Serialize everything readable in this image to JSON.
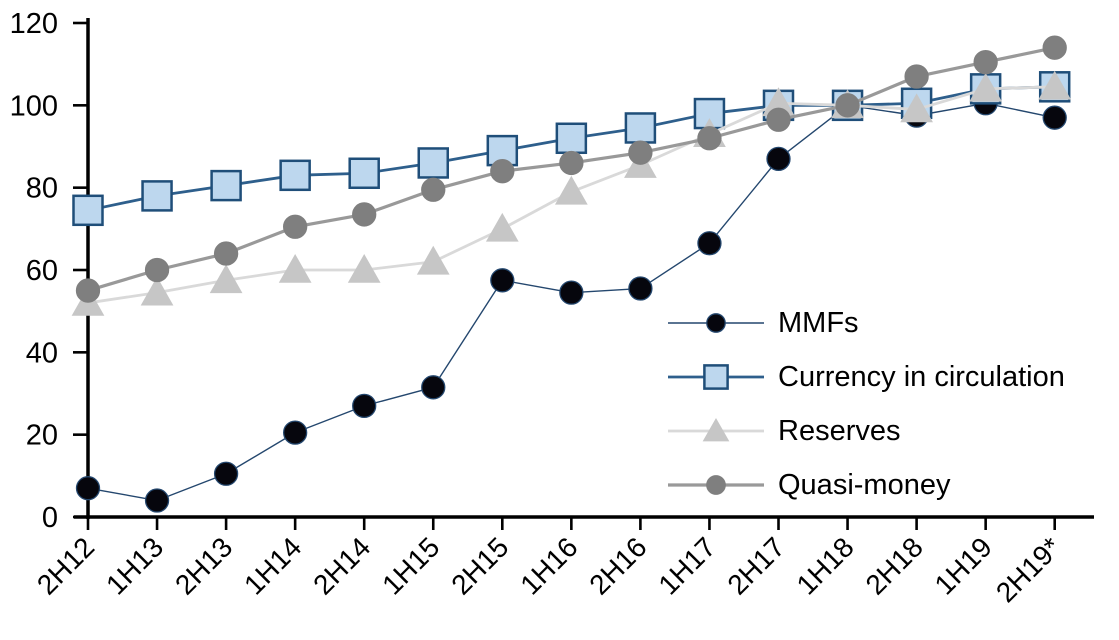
{
  "chart_data": {
    "type": "line",
    "title": "",
    "xlabel": "",
    "ylabel": "",
    "categories": [
      "2H12",
      "1H13",
      "2H13",
      "1H14",
      "2H14",
      "1H15",
      "2H15",
      "1H16",
      "2H16",
      "1H17",
      "2H17",
      "1H18",
      "2H18",
      "1H19",
      "2H19*"
    ],
    "series": [
      {
        "name": "MMFs",
        "marker": "circle",
        "marker_fill": "#06060d",
        "marker_stroke": "#24476e",
        "line_color": "#24476e",
        "line_width": 1.4,
        "marker_size": 11.5,
        "values": [
          7,
          4,
          10.5,
          20.5,
          27,
          31.5,
          57.5,
          54.5,
          55.5,
          66.5,
          87,
          100,
          97.5,
          100.5,
          97
        ]
      },
      {
        "name": "Currency in circulation",
        "marker": "square",
        "marker_fill": "#bdd7ee",
        "marker_stroke": "#1f4e79",
        "line_color": "#2e5f8c",
        "line_width": 2.8,
        "marker_size": 14.5,
        "values": [
          74.5,
          78,
          80.5,
          83,
          83.5,
          86,
          89,
          92,
          94.5,
          98,
          100,
          100,
          100.5,
          104,
          104.5
        ]
      },
      {
        "name": "Reserves",
        "marker": "triangle",
        "marker_fill": "#c6c6c6",
        "marker_stroke": "#c6c6c6",
        "line_color": "#d9d9d9",
        "line_width": 2.8,
        "marker_size": 15,
        "values": [
          52,
          54.5,
          57.5,
          60,
          60,
          62,
          70,
          79,
          85.5,
          93,
          100.5,
          100,
          99,
          104,
          104.5
        ]
      },
      {
        "name": "Quasi-money",
        "marker": "circle",
        "marker_fill": "#7f7f7f",
        "marker_stroke": "#7f7f7f",
        "line_color": "#999999",
        "line_width": 3.2,
        "marker_size": 11.5,
        "values": [
          55,
          60,
          64,
          70.5,
          73.5,
          79.5,
          84,
          86,
          88.5,
          92,
          96.5,
          100,
          107,
          110.5,
          114
        ]
      }
    ],
    "ylim": [
      0,
      120
    ],
    "yticks": [
      0,
      20,
      40,
      60,
      80,
      100,
      120
    ],
    "grid": false,
    "legend_position": "right-middle",
    "axis_color": "#000000",
    "tick_label_color": "#000000",
    "x_tick_rotation_deg": -45
  }
}
